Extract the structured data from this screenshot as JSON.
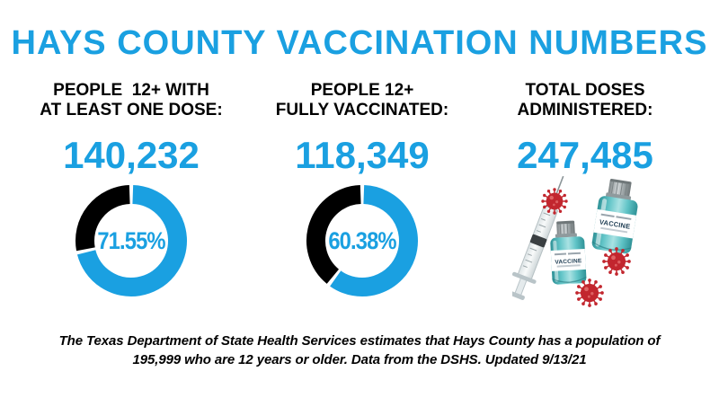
{
  "title": "HAYS COUNTY VACCINATION NUMBERS",
  "colors": {
    "accent_blue": "#1AA0E1",
    "ink": "#000000",
    "vial_teal": "#4CB8BC",
    "virus_red": "#C2262E"
  },
  "columns": [
    {
      "heading_line1": "PEOPLE  12+ WITH",
      "heading_line2": "AT LEAST ONE DOSE:",
      "value": "140,232"
    },
    {
      "heading_line1": "PEOPLE 12+",
      "heading_line2": "FULLY VACCINATED:",
      "value": "118,349"
    },
    {
      "heading_line1": "TOTAL DOSES",
      "heading_line2": "ADMINISTERED:",
      "value": "247,485"
    }
  ],
  "chart_data": [
    {
      "type": "pie",
      "variant": "donut",
      "title": "People 12+ with at least one dose",
      "center_label": "71.55%",
      "values": [
        71.55,
        28.45
      ],
      "segment_colors": [
        "#1AA0E1",
        "#000000"
      ],
      "start_angle_deg": 0,
      "direction": "clockwise",
      "legend_position": "none"
    },
    {
      "type": "pie",
      "variant": "donut",
      "title": "People 12+ fully vaccinated",
      "center_label": "60.38%",
      "values": [
        60.38,
        39.62
      ],
      "segment_colors": [
        "#1AA0E1",
        "#000000"
      ],
      "start_angle_deg": 0,
      "direction": "clockwise",
      "legend_position": "none"
    }
  ],
  "illustration": {
    "vial_label": "VACCINE"
  },
  "footer": {
    "line1": "The Texas Department of State Health Services estimates that Hays County has a population of",
    "line2": "195,999 who are 12 years or older. Data from the DSHS. Updated 9/13/21"
  }
}
